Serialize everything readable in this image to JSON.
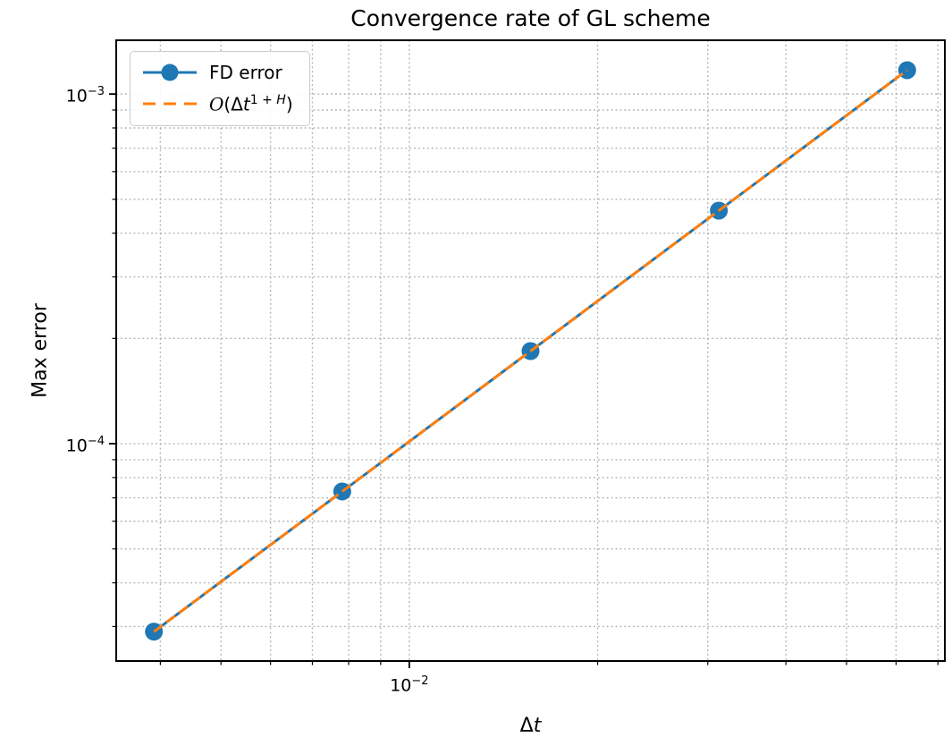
{
  "title": "Convergence rate of GL scheme",
  "axes": {
    "ylabel": "Max error",
    "xlabel": {
      "delta": "Δ",
      "var": "t"
    }
  },
  "legend": {
    "position": "upper left",
    "items": [
      {
        "label": "FD error"
      },
      {
        "label_plain": "O(Δt^(1+H))",
        "parts": {
          "o": "O",
          "open": "(Δ",
          "var": "t",
          "sup_num": "1 + ",
          "sup_var": "H",
          "close": ")"
        }
      }
    ]
  },
  "chart_data": {
    "type": "line",
    "title": "Convergence rate of GL scheme",
    "xlabel": "Δt",
    "ylabel": "Max error",
    "xscale": "log",
    "yscale": "log",
    "grid": {
      "which": "both",
      "linestyle": "dotted",
      "color": "#b0b0b0"
    },
    "legend_position": "upper left",
    "x": [
      0.00390625,
      0.0078125,
      0.015625,
      0.03125,
      0.0625
    ],
    "series": [
      {
        "name": "FD error",
        "color": "#1f77b4",
        "linestyle": "solid",
        "marker": "circle",
        "values": [
          2.9e-05,
          7.3e-05,
          0.000184,
          0.000464,
          0.00117
        ]
      },
      {
        "name": "O(Δt^(1+H))",
        "color": "#ff7f0e",
        "linestyle": "dashed",
        "marker": null,
        "values": [
          2.9e-05,
          7.3e-05,
          0.000184,
          0.000464,
          0.00117
        ]
      }
    ],
    "xlim": [
      0.0034,
      0.0718
    ],
    "ylim": [
      2.39e-05,
      0.001425
    ],
    "x_ticks": [
      {
        "value": 0.01,
        "base": "10",
        "exp": "−2"
      }
    ],
    "y_ticks": [
      {
        "value": 0.001,
        "base": "10",
        "exp": "−3"
      },
      {
        "value": 0.0001,
        "base": "10",
        "exp": "−4"
      }
    ]
  }
}
